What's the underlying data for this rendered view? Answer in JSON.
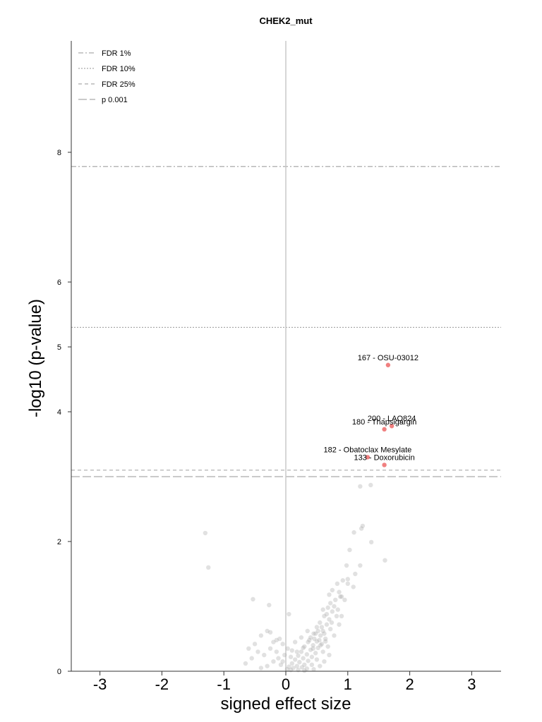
{
  "chart_data": {
    "type": "scatter",
    "title": "CHEK2_mut",
    "xlabel": "signed effect size",
    "ylabel": "-log10 (p-value)",
    "xlim": [
      -3.5,
      3.5
    ],
    "ylim": [
      0,
      9.7
    ],
    "xticks": [
      -3,
      -2,
      -1,
      0,
      1,
      2,
      3
    ],
    "yticks": [
      0,
      2,
      4,
      5,
      6,
      8
    ],
    "vline_x": 0,
    "legend_position": "top-left",
    "thresholds": [
      {
        "label": "FDR 1%",
        "y": 7.78,
        "style": "dashdot"
      },
      {
        "label": "FDR 10%",
        "y": 5.3,
        "style": "dotted"
      },
      {
        "label": "FDR 25%",
        "y": 3.1,
        "style": "dashed"
      },
      {
        "label": "p 0.001",
        "y": 3.0,
        "style": "longdash"
      }
    ],
    "highlight_color": "#f08080",
    "background_color": "#aaaaaa",
    "significant_points": [
      {
        "x": 1.65,
        "y": 4.72,
        "label": "167 - OSU-03012"
      },
      {
        "x": 1.71,
        "y": 3.78,
        "label": "200 - LAQ824"
      },
      {
        "x": 1.59,
        "y": 3.73,
        "label": "180 - Thapsigargin"
      },
      {
        "x": 1.32,
        "y": 3.3,
        "label": "182 - Obatoclax Mesylate"
      },
      {
        "x": 1.59,
        "y": 3.18,
        "label": "133 - Doxorubicin"
      }
    ],
    "background_points": [
      {
        "x": -1.3,
        "y": 2.13
      },
      {
        "x": -1.25,
        "y": 1.6
      },
      {
        "x": -0.53,
        "y": 1.11
      },
      {
        "x": -0.27,
        "y": 1.02
      },
      {
        "x": 0.05,
        "y": 0.88
      },
      {
        "x": 1.2,
        "y": 2.85
      },
      {
        "x": 1.37,
        "y": 2.87
      },
      {
        "x": 1.24,
        "y": 2.24
      },
      {
        "x": 1.22,
        "y": 2.2
      },
      {
        "x": 1.1,
        "y": 2.14
      },
      {
        "x": 1.38,
        "y": 1.99
      },
      {
        "x": 1.03,
        "y": 1.87
      },
      {
        "x": 1.6,
        "y": 1.71
      },
      {
        "x": 0.98,
        "y": 1.63
      },
      {
        "x": 1.2,
        "y": 1.63
      },
      {
        "x": 1.12,
        "y": 1.5
      },
      {
        "x": 1.0,
        "y": 1.42
      },
      {
        "x": 0.92,
        "y": 1.4
      },
      {
        "x": 0.83,
        "y": 1.35
      },
      {
        "x": 1.0,
        "y": 1.35
      },
      {
        "x": 1.09,
        "y": 1.3
      },
      {
        "x": 0.75,
        "y": 1.25
      },
      {
        "x": 0.86,
        "y": 1.22
      },
      {
        "x": 0.7,
        "y": 1.18
      },
      {
        "x": 0.88,
        "y": 1.15
      },
      {
        "x": 0.8,
        "y": 1.1
      },
      {
        "x": 0.72,
        "y": 1.05
      },
      {
        "x": 0.68,
        "y": 0.98
      },
      {
        "x": 0.75,
        "y": 0.92
      },
      {
        "x": 0.62,
        "y": 0.85
      },
      {
        "x": 0.82,
        "y": 0.85
      },
      {
        "x": 0.7,
        "y": 0.8
      },
      {
        "x": 0.55,
        "y": 0.75
      },
      {
        "x": 0.66,
        "y": 0.72
      },
      {
        "x": 0.5,
        "y": 0.68
      },
      {
        "x": 0.6,
        "y": 0.62
      },
      {
        "x": 0.45,
        "y": 0.58
      },
      {
        "x": 0.56,
        "y": 0.55
      },
      {
        "x": 0.4,
        "y": 0.52
      },
      {
        "x": 0.64,
        "y": 0.5
      },
      {
        "x": 0.5,
        "y": 0.46
      },
      {
        "x": 0.36,
        "y": 0.45
      },
      {
        "x": 0.58,
        "y": 0.42
      },
      {
        "x": 0.44,
        "y": 0.4
      },
      {
        "x": 0.3,
        "y": 0.38
      },
      {
        "x": 0.52,
        "y": 0.36
      },
      {
        "x": 0.68,
        "y": 0.38
      },
      {
        "x": 0.4,
        "y": 0.33
      },
      {
        "x": 0.25,
        "y": 0.3
      },
      {
        "x": 0.48,
        "y": 0.28
      },
      {
        "x": 0.6,
        "y": 0.3
      },
      {
        "x": 0.34,
        "y": 0.26
      },
      {
        "x": 0.2,
        "y": 0.24
      },
      {
        "x": 0.42,
        "y": 0.22
      },
      {
        "x": 0.28,
        "y": 0.2
      },
      {
        "x": 0.15,
        "y": 0.18
      },
      {
        "x": 0.36,
        "y": 0.16
      },
      {
        "x": 0.5,
        "y": 0.18
      },
      {
        "x": 0.22,
        "y": 0.14
      },
      {
        "x": 0.1,
        "y": 0.12
      },
      {
        "x": 0.3,
        "y": 0.1
      },
      {
        "x": 0.42,
        "y": 0.1
      },
      {
        "x": 0.18,
        "y": 0.08
      },
      {
        "x": 0.05,
        "y": 0.07
      },
      {
        "x": 0.26,
        "y": 0.06
      },
      {
        "x": 0.12,
        "y": 0.05
      },
      {
        "x": 0.34,
        "y": 0.04
      },
      {
        "x": 0.02,
        "y": 0.03
      },
      {
        "x": 0.2,
        "y": 0.02
      },
      {
        "x": 0.08,
        "y": 0.02
      },
      {
        "x": 0.3,
        "y": 0.01
      },
      {
        "x": 0.45,
        "y": 0.03
      },
      {
        "x": 0.55,
        "y": 0.08
      },
      {
        "x": 0.62,
        "y": 0.15
      },
      {
        "x": 0.7,
        "y": 0.25
      },
      {
        "x": 0.78,
        "y": 0.55
      },
      {
        "x": 0.86,
        "y": 0.72
      },
      {
        "x": 0.9,
        "y": 0.85
      },
      {
        "x": -0.05,
        "y": 0.42
      },
      {
        "x": -0.1,
        "y": 0.5
      },
      {
        "x": -0.15,
        "y": 0.3
      },
      {
        "x": -0.2,
        "y": 0.45
      },
      {
        "x": -0.25,
        "y": 0.35
      },
      {
        "x": -0.3,
        "y": 0.62
      },
      {
        "x": -0.35,
        "y": 0.25
      },
      {
        "x": -0.4,
        "y": 0.55
      },
      {
        "x": -0.45,
        "y": 0.3
      },
      {
        "x": -0.5,
        "y": 0.42
      },
      {
        "x": -0.55,
        "y": 0.2
      },
      {
        "x": -0.6,
        "y": 0.35
      },
      {
        "x": -0.65,
        "y": 0.12
      },
      {
        "x": -0.2,
        "y": 0.15
      },
      {
        "x": -0.3,
        "y": 0.08
      },
      {
        "x": -0.12,
        "y": 0.2
      },
      {
        "x": -0.08,
        "y": 0.1
      },
      {
        "x": -0.02,
        "y": 0.25
      },
      {
        "x": -0.4,
        "y": 0.05
      },
      {
        "x": -0.25,
        "y": 0.6
      },
      {
        "x": -0.15,
        "y": 0.48
      },
      {
        "x": 0.15,
        "y": 0.45
      },
      {
        "x": 0.1,
        "y": 0.32
      },
      {
        "x": 0.25,
        "y": 0.52
      },
      {
        "x": 0.35,
        "y": 0.62
      },
      {
        "x": 0.48,
        "y": 0.58
      },
      {
        "x": 0.58,
        "y": 0.68
      },
      {
        "x": 0.52,
        "y": 0.62
      },
      {
        "x": 0.46,
        "y": 0.5
      },
      {
        "x": 0.54,
        "y": 0.48
      },
      {
        "x": 0.62,
        "y": 0.58
      },
      {
        "x": 0.72,
        "y": 0.65
      },
      {
        "x": 0.38,
        "y": 0.48
      },
      {
        "x": 0.44,
        "y": 0.35
      },
      {
        "x": 0.56,
        "y": 0.4
      },
      {
        "x": 0.64,
        "y": 0.46
      },
      {
        "x": 0.28,
        "y": 0.36
      },
      {
        "x": 0.18,
        "y": 0.3
      },
      {
        "x": 0.08,
        "y": 0.22
      },
      {
        "x": -0.05,
        "y": 0.15
      },
      {
        "x": 0.03,
        "y": 0.35
      },
      {
        "x": 0.9,
        "y": 1.15
      },
      {
        "x": 0.84,
        "y": 0.95
      },
      {
        "x": 0.78,
        "y": 1.0
      },
      {
        "x": 0.95,
        "y": 1.1
      },
      {
        "x": 0.66,
        "y": 0.88
      },
      {
        "x": 0.6,
        "y": 0.95
      },
      {
        "x": 0.74,
        "y": 0.75
      }
    ]
  }
}
